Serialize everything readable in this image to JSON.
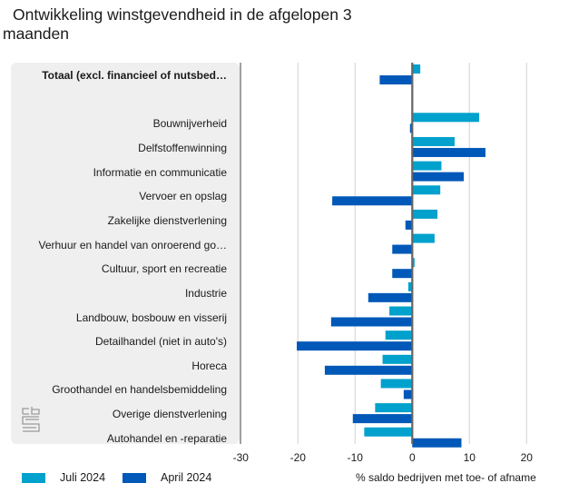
{
  "title_line1": "Ontwikkeling winstgevendheid in de afgelopen 3",
  "title_line2": "maanden",
  "logo": "cbs-logo-icon",
  "chart_data": {
    "type": "bar",
    "orientation": "horizontal",
    "title": "Ontwikkeling winstgevendheid in de afgelopen 3 maanden",
    "xlabel": "% saldo bedrijven met toe- of afname",
    "ylabel": "",
    "xlim": [
      -30,
      20
    ],
    "xticks": [
      -30,
      -20,
      -10,
      0,
      10,
      20
    ],
    "grid": true,
    "legend_position": "bottom-left",
    "categories": [
      "Totaal (excl. financieel of nutsbed…",
      "",
      "Bouwnijverheid",
      "Delfstoffenwinning",
      "Informatie en communicatie",
      "Vervoer en opslag",
      "Zakelijke dienstverlening",
      "Verhuur en handel van onroerend go…",
      "Cultuur, sport en recreatie",
      "Industrie",
      "Landbouw, bosbouw en visserij",
      "Detailhandel (niet in auto's)",
      "Horeca",
      "Groothandel en handelsbemiddeling",
      "Overige dienstverlening",
      "Autohandel en -reparatie"
    ],
    "series": [
      {
        "name": "Juli 2024",
        "color": "#00A1CD",
        "values": [
          1.4,
          null,
          11.7,
          7.4,
          5.1,
          4.9,
          4.4,
          3.9,
          0.4,
          -0.7,
          -4.0,
          -4.7,
          -5.2,
          -5.5,
          -6.5,
          -8.4
        ]
      },
      {
        "name": "April 2024",
        "color": "#0058B8",
        "values": [
          -5.7,
          null,
          -0.4,
          12.8,
          9.0,
          -14.0,
          -1.2,
          -3.5,
          -3.5,
          -7.7,
          -14.2,
          -20.2,
          -15.3,
          -1.5,
          -10.4,
          8.6
        ]
      }
    ]
  }
}
